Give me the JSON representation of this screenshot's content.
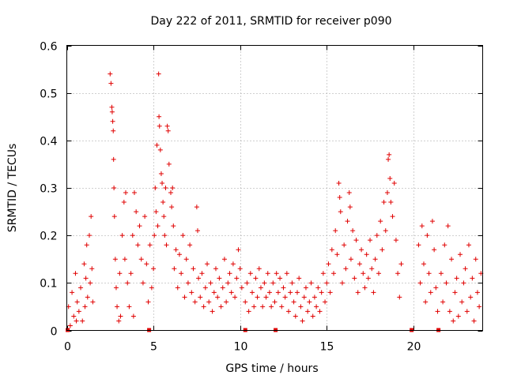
{
  "chart_data": {
    "type": "scatter",
    "title": "Day 222 of 2011, SRMTID for receiver p090",
    "xlabel": "GPS time / hours",
    "ylabel": "SRMTID / TECUs",
    "xlim": [
      0,
      24
    ],
    "ylim": [
      0,
      0.6
    ],
    "xticks": [
      0,
      5,
      10,
      15,
      20
    ],
    "xtick_labels": [
      "0",
      "5",
      "10",
      "15",
      "20"
    ],
    "yticks": [
      0,
      0.1,
      0.2,
      0.3,
      0.4,
      0.5,
      0.6
    ],
    "ytick_labels": [
      "0",
      "0.1",
      "0.2",
      "0.3",
      "0.4",
      "0.5",
      "0.6"
    ],
    "grid": true,
    "marker": "plus",
    "color": "#e00000",
    "series": [
      {
        "name": "SRMTID",
        "points": [
          [
            0.1,
            0.05
          ],
          [
            0.2,
            0.01
          ],
          [
            0.3,
            0.08
          ],
          [
            0.4,
            0.03
          ],
          [
            0.5,
            0.12
          ],
          [
            0.55,
            0.02
          ],
          [
            0.6,
            0.06
          ],
          [
            0.7,
            0.04
          ],
          [
            0.8,
            0.09
          ],
          [
            0.9,
            0.02
          ],
          [
            1.0,
            0.14
          ],
          [
            1.05,
            0.05
          ],
          [
            1.1,
            0.11
          ],
          [
            1.15,
            0.18
          ],
          [
            1.2,
            0.07
          ],
          [
            1.3,
            0.2
          ],
          [
            1.35,
            0.1
          ],
          [
            1.4,
            0.24
          ],
          [
            1.45,
            0.13
          ],
          [
            1.5,
            0.06
          ],
          [
            2.5,
            0.54
          ],
          [
            2.55,
            0.52
          ],
          [
            2.6,
            0.47
          ],
          [
            2.62,
            0.46
          ],
          [
            2.65,
            0.44
          ],
          [
            2.68,
            0.42
          ],
          [
            2.7,
            0.36
          ],
          [
            2.72,
            0.3
          ],
          [
            2.75,
            0.24
          ],
          [
            2.8,
            0.15
          ],
          [
            2.85,
            0.09
          ],
          [
            2.9,
            0.05
          ],
          [
            3.0,
            0.02
          ],
          [
            3.05,
            0.12
          ],
          [
            3.1,
            0.03
          ],
          [
            3.2,
            0.2
          ],
          [
            3.3,
            0.27
          ],
          [
            3.35,
            0.15
          ],
          [
            3.4,
            0.29
          ],
          [
            3.5,
            0.1
          ],
          [
            3.6,
            0.05
          ],
          [
            3.7,
            0.12
          ],
          [
            3.8,
            0.2
          ],
          [
            3.85,
            0.03
          ],
          [
            3.9,
            0.29
          ],
          [
            4.0,
            0.25
          ],
          [
            4.1,
            0.18
          ],
          [
            4.2,
            0.22
          ],
          [
            4.3,
            0.15
          ],
          [
            4.4,
            0.1
          ],
          [
            4.5,
            0.24
          ],
          [
            4.6,
            0.14
          ],
          [
            4.7,
            0.06
          ],
          [
            4.8,
            0.18
          ],
          [
            4.9,
            0.09
          ],
          [
            5.0,
            0.13
          ],
          [
            5.05,
            0.2
          ],
          [
            5.1,
            0.3
          ],
          [
            5.15,
            0.25
          ],
          [
            5.2,
            0.39
          ],
          [
            5.25,
            0.22
          ],
          [
            5.3,
            0.54
          ],
          [
            5.32,
            0.45
          ],
          [
            5.35,
            0.43
          ],
          [
            5.4,
            0.38
          ],
          [
            5.45,
            0.33
          ],
          [
            5.5,
            0.31
          ],
          [
            5.55,
            0.27
          ],
          [
            5.6,
            0.24
          ],
          [
            5.65,
            0.2
          ],
          [
            5.7,
            0.3
          ],
          [
            5.75,
            0.18
          ],
          [
            5.8,
            0.43
          ],
          [
            5.85,
            0.42
          ],
          [
            5.9,
            0.35
          ],
          [
            6.0,
            0.29
          ],
          [
            6.05,
            0.26
          ],
          [
            6.1,
            0.3
          ],
          [
            6.15,
            0.22
          ],
          [
            6.2,
            0.13
          ],
          [
            6.3,
            0.17
          ],
          [
            6.4,
            0.09
          ],
          [
            6.5,
            0.16
          ],
          [
            6.6,
            0.12
          ],
          [
            6.7,
            0.2
          ],
          [
            6.8,
            0.07
          ],
          [
            6.9,
            0.15
          ],
          [
            7.0,
            0.1
          ],
          [
            7.1,
            0.18
          ],
          [
            7.2,
            0.08
          ],
          [
            7.3,
            0.13
          ],
          [
            7.4,
            0.06
          ],
          [
            7.5,
            0.26
          ],
          [
            7.55,
            0.21
          ],
          [
            7.6,
            0.11
          ],
          [
            7.7,
            0.07
          ],
          [
            7.8,
            0.12
          ],
          [
            7.9,
            0.05
          ],
          [
            8.0,
            0.09
          ],
          [
            8.1,
            0.14
          ],
          [
            8.2,
            0.06
          ],
          [
            8.3,
            0.1
          ],
          [
            8.4,
            0.04
          ],
          [
            8.5,
            0.08
          ],
          [
            8.6,
            0.13
          ],
          [
            8.7,
            0.07
          ],
          [
            8.8,
            0.11
          ],
          [
            8.9,
            0.05
          ],
          [
            9.0,
            0.09
          ],
          [
            9.1,
            0.15
          ],
          [
            9.2,
            0.06
          ],
          [
            9.3,
            0.1
          ],
          [
            9.4,
            0.12
          ],
          [
            9.5,
            0.08
          ],
          [
            9.6,
            0.14
          ],
          [
            9.7,
            0.07
          ],
          [
            9.8,
            0.11
          ],
          [
            9.9,
            0.17
          ],
          [
            10.0,
            0.13
          ],
          [
            10.1,
            0.09
          ],
          [
            10.3,
            0.06
          ],
          [
            10.4,
            0.1
          ],
          [
            10.5,
            0.04
          ],
          [
            10.6,
            0.12
          ],
          [
            10.7,
            0.08
          ],
          [
            10.8,
            0.05
          ],
          [
            10.9,
            0.11
          ],
          [
            11.0,
            0.07
          ],
          [
            11.1,
            0.13
          ],
          [
            11.2,
            0.09
          ],
          [
            11.3,
            0.05
          ],
          [
            11.4,
            0.1
          ],
          [
            11.5,
            0.07
          ],
          [
            11.6,
            0.12
          ],
          [
            11.7,
            0.08
          ],
          [
            11.8,
            0.05
          ],
          [
            11.9,
            0.1
          ],
          [
            12.0,
            0.06
          ],
          [
            12.1,
            0.12
          ],
          [
            12.2,
            0.08
          ],
          [
            12.3,
            0.11
          ],
          [
            12.4,
            0.05
          ],
          [
            12.5,
            0.09
          ],
          [
            12.6,
            0.07
          ],
          [
            12.7,
            0.12
          ],
          [
            12.8,
            0.04
          ],
          [
            12.9,
            0.08
          ],
          [
            13.0,
            0.1
          ],
          [
            13.1,
            0.06
          ],
          [
            13.2,
            0.03
          ],
          [
            13.3,
            0.08
          ],
          [
            13.4,
            0.11
          ],
          [
            13.5,
            0.05
          ],
          [
            13.6,
            0.02
          ],
          [
            13.7,
            0.07
          ],
          [
            13.8,
            0.09
          ],
          [
            13.9,
            0.04
          ],
          [
            14.0,
            0.06
          ],
          [
            14.1,
            0.1
          ],
          [
            14.2,
            0.03
          ],
          [
            14.3,
            0.07
          ],
          [
            14.4,
            0.05
          ],
          [
            14.5,
            0.09
          ],
          [
            14.6,
            0.04
          ],
          [
            14.7,
            0.08
          ],
          [
            14.8,
            0.12
          ],
          [
            14.9,
            0.06
          ],
          [
            15.0,
            0.1
          ],
          [
            15.1,
            0.14
          ],
          [
            15.2,
            0.08
          ],
          [
            15.3,
            0.17
          ],
          [
            15.4,
            0.12
          ],
          [
            15.5,
            0.21
          ],
          [
            15.6,
            0.16
          ],
          [
            15.7,
            0.31
          ],
          [
            15.75,
            0.28
          ],
          [
            15.8,
            0.25
          ],
          [
            15.9,
            0.1
          ],
          [
            16.0,
            0.18
          ],
          [
            16.1,
            0.13
          ],
          [
            16.2,
            0.23
          ],
          [
            16.3,
            0.29
          ],
          [
            16.35,
            0.26
          ],
          [
            16.4,
            0.15
          ],
          [
            16.5,
            0.21
          ],
          [
            16.6,
            0.11
          ],
          [
            16.7,
            0.19
          ],
          [
            16.8,
            0.08
          ],
          [
            16.9,
            0.14
          ],
          [
            17.0,
            0.17
          ],
          [
            17.1,
            0.12
          ],
          [
            17.2,
            0.09
          ],
          [
            17.3,
            0.16
          ],
          [
            17.4,
            0.11
          ],
          [
            17.5,
            0.19
          ],
          [
            17.6,
            0.13
          ],
          [
            17.7,
            0.08
          ],
          [
            17.8,
            0.15
          ],
          [
            17.9,
            0.2
          ],
          [
            18.0,
            0.12
          ],
          [
            18.1,
            0.23
          ],
          [
            18.2,
            0.17
          ],
          [
            18.3,
            0.27
          ],
          [
            18.4,
            0.21
          ],
          [
            18.5,
            0.29
          ],
          [
            18.55,
            0.36
          ],
          [
            18.6,
            0.37
          ],
          [
            18.65,
            0.32
          ],
          [
            18.7,
            0.27
          ],
          [
            18.8,
            0.24
          ],
          [
            18.9,
            0.31
          ],
          [
            19.0,
            0.19
          ],
          [
            19.1,
            0.12
          ],
          [
            19.2,
            0.07
          ],
          [
            19.3,
            0.14
          ],
          [
            20.3,
            0.18
          ],
          [
            20.4,
            0.1
          ],
          [
            20.5,
            0.22
          ],
          [
            20.6,
            0.14
          ],
          [
            20.7,
            0.06
          ],
          [
            20.8,
            0.2
          ],
          [
            20.9,
            0.12
          ],
          [
            21.0,
            0.08
          ],
          [
            21.1,
            0.23
          ],
          [
            21.2,
            0.17
          ],
          [
            21.3,
            0.09
          ],
          [
            21.4,
            0.04
          ],
          [
            21.6,
            0.12
          ],
          [
            21.7,
            0.06
          ],
          [
            21.8,
            0.18
          ],
          [
            21.9,
            0.1
          ],
          [
            22.0,
            0.22
          ],
          [
            22.1,
            0.04
          ],
          [
            22.2,
            0.15
          ],
          [
            22.3,
            0.02
          ],
          [
            22.4,
            0.08
          ],
          [
            22.5,
            0.11
          ],
          [
            22.6,
            0.03
          ],
          [
            22.7,
            0.16
          ],
          [
            22.8,
            0.06
          ],
          [
            22.9,
            0.1
          ],
          [
            23.0,
            0.13
          ],
          [
            23.1,
            0.04
          ],
          [
            23.2,
            0.18
          ],
          [
            23.3,
            0.07
          ],
          [
            23.4,
            0.11
          ],
          [
            23.5,
            0.02
          ],
          [
            23.6,
            0.15
          ],
          [
            23.7,
            0.08
          ],
          [
            23.8,
            0.05
          ],
          [
            23.9,
            0.12
          ]
        ]
      }
    ],
    "gap_markers": [
      0.05,
      4.75,
      10.3,
      12.05,
      19.9,
      21.45
    ]
  }
}
